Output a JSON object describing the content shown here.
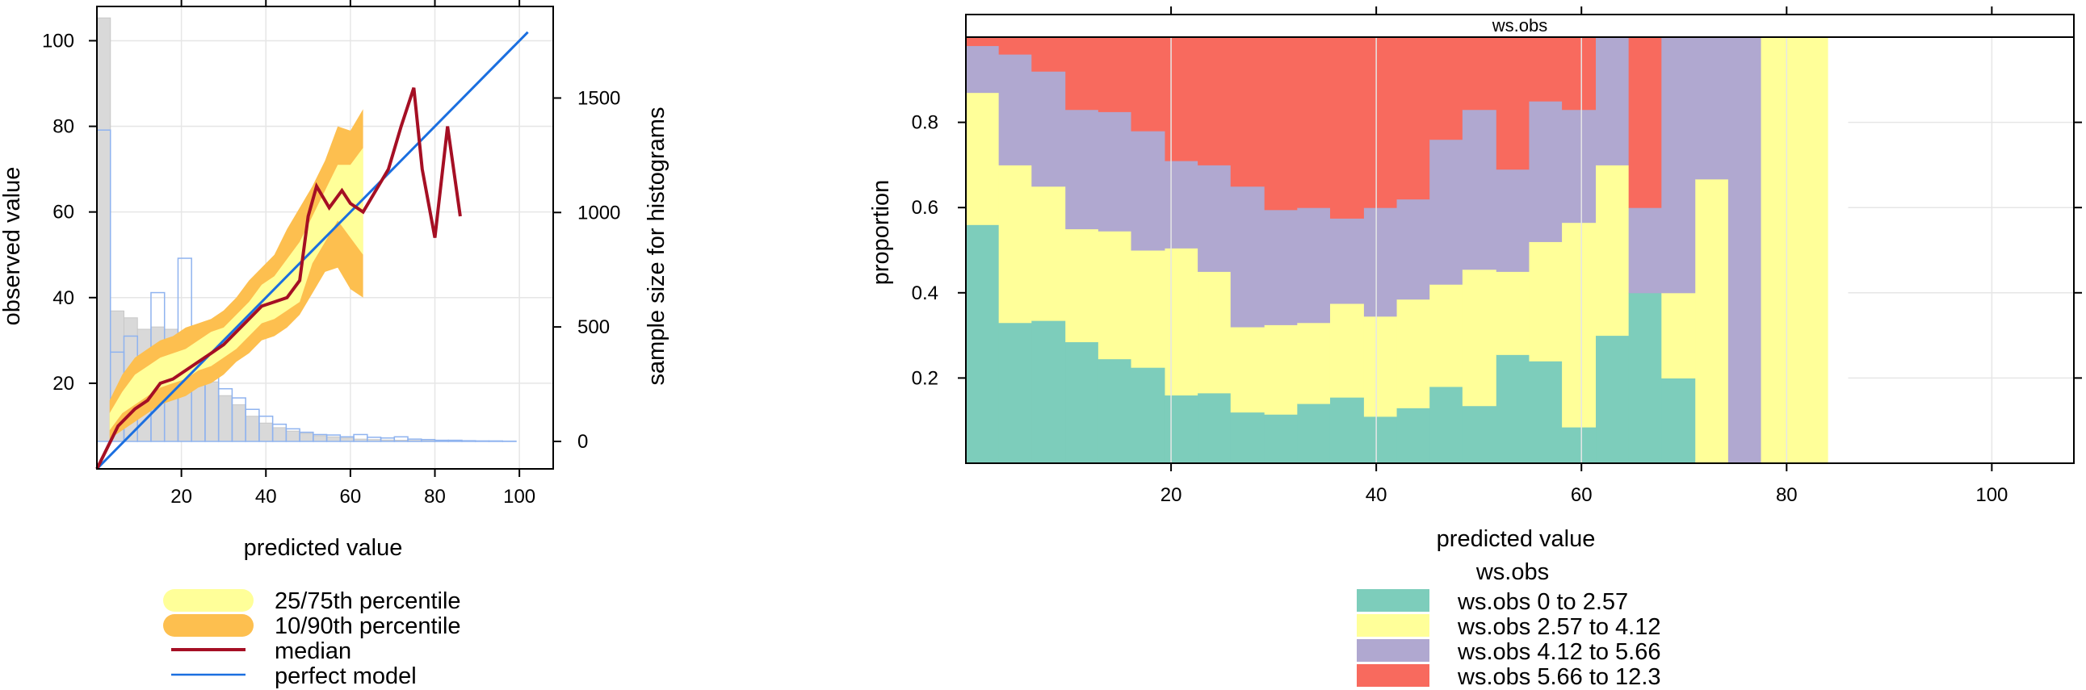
{
  "colors": {
    "p25_75": "#ffff99",
    "p10_90": "#fdbf4f",
    "median": "#a50f24",
    "perfect": "#1b6fe0",
    "hist_obs": "#d9d9d9",
    "hist_pred": "#8fb3ef",
    "ws_bins": [
      "#7dcdbb",
      "#ffff99",
      "#b0a8d0",
      "#f86a5e"
    ]
  },
  "chart_data": [
    {
      "type": "line",
      "xlabel": "predicted value",
      "ylabel": "observed value",
      "y2label": "sample size for histograms",
      "xlim": [
        0,
        108
      ],
      "ylim": [
        0,
        108
      ],
      "y2lim": [
        -120,
        1900
      ],
      "xticks": [
        20,
        40,
        60,
        80,
        100
      ],
      "yticks": [
        20,
        40,
        60,
        80,
        100
      ],
      "y2ticks": [
        0,
        500,
        1000,
        1500
      ],
      "grid": true,
      "legend_position": "bottom",
      "legend": [
        {
          "label": "25/75th percentile",
          "key": "p25_75",
          "style": "band"
        },
        {
          "label": "10/90th percentile",
          "key": "p10_90",
          "style": "band"
        },
        {
          "label": "median",
          "key": "median",
          "style": "line"
        },
        {
          "label": "perfect model",
          "key": "perfect",
          "style": "thinline"
        }
      ],
      "series": [
        {
          "name": "median",
          "x": [
            0,
            5,
            9,
            12,
            15,
            18,
            21,
            24,
            27,
            30,
            33,
            36,
            39,
            42,
            45,
            48,
            50,
            52,
            55,
            58,
            60,
            63,
            66,
            69,
            72,
            75,
            77,
            80,
            83,
            86
          ],
          "y": [
            0,
            10,
            14,
            16,
            20,
            21,
            23,
            25,
            27,
            29,
            32,
            35,
            38,
            39,
            40,
            44,
            59,
            66,
            61,
            65,
            62,
            60,
            65,
            70,
            80,
            89,
            70,
            54,
            80,
            59
          ]
        }
      ],
      "band_10_90": {
        "x": [
          3,
          6,
          9,
          12,
          15,
          18,
          21,
          24,
          27,
          30,
          33,
          36,
          39,
          42,
          45,
          48,
          51,
          54,
          57,
          60,
          63
        ],
        "low": [
          7,
          9,
          11,
          13,
          15,
          16,
          17,
          19,
          20,
          22,
          25,
          27,
          30,
          31,
          33,
          36,
          41,
          46,
          47,
          42,
          40
        ],
        "high": [
          16,
          22,
          26,
          28,
          30,
          31,
          33,
          34,
          35,
          37,
          40,
          44,
          47,
          50,
          56,
          61,
          66,
          72,
          80,
          79,
          84
        ]
      },
      "band_25_75": {
        "x": [
          3,
          6,
          9,
          12,
          15,
          18,
          21,
          24,
          27,
          30,
          33,
          36,
          39,
          42,
          45,
          48,
          51,
          54,
          57,
          60,
          63
        ],
        "low": [
          9,
          13,
          15,
          17,
          19,
          20,
          21,
          23,
          24,
          26,
          28,
          31,
          34,
          35,
          37,
          39,
          48,
          53,
          58,
          54,
          50
        ],
        "high": [
          13,
          18,
          22,
          24,
          26,
          27,
          28,
          30,
          32,
          33,
          36,
          39,
          43,
          45,
          49,
          53,
          59,
          65,
          71,
          71,
          75
        ]
      },
      "hist_observed": {
        "bin_width": 3.2,
        "x_start": 0,
        "counts": [
          1850,
          570,
          540,
          490,
          500,
          490,
          420,
          380,
          260,
          200,
          160,
          110,
          80,
          60,
          45,
          35,
          25,
          20,
          15,
          10,
          8,
          6,
          5,
          4,
          3,
          3,
          2,
          2,
          2,
          1,
          1
        ]
      },
      "hist_predicted": {
        "bin_width": 3.2,
        "x_start": 0,
        "counts": [
          1360,
          390,
          460,
          320,
          650,
          390,
          800,
          360,
          330,
          230,
          190,
          140,
          110,
          75,
          55,
          40,
          30,
          28,
          20,
          30,
          18,
          15,
          20,
          10,
          8,
          5,
          5,
          3,
          2,
          2,
          1
        ]
      },
      "perfect_model": {
        "x": [
          0,
          102
        ],
        "y": [
          0,
          102
        ]
      }
    },
    {
      "type": "bar",
      "stacked": true,
      "strip_title": "ws.obs",
      "xlabel": "predicted value",
      "ylabel": "proportion",
      "xlim": [
        0,
        108
      ],
      "ylim": [
        0,
        1
      ],
      "xticks": [
        20,
        40,
        60,
        80,
        100
      ],
      "yticks": [
        0.2,
        0.4,
        0.6,
        0.8
      ],
      "grid": true,
      "legend_title": "ws.obs",
      "legend_position": "bottom",
      "series_names": [
        "ws.obs 0 to 2.57",
        "ws.obs 2.57 to 4.12",
        "ws.obs 4.12 to 5.66",
        "ws.obs 5.66 to 12.3"
      ],
      "bins": [
        {
          "x0": 0.0,
          "x1": 3.2,
          "p": [
            0.56,
            0.31,
            0.11,
            0.02
          ]
        },
        {
          "x0": 3.2,
          "x1": 6.4,
          "p": [
            0.33,
            0.37,
            0.26,
            0.04
          ]
        },
        {
          "x0": 6.4,
          "x1": 9.7,
          "p": [
            0.335,
            0.315,
            0.27,
            0.08
          ]
        },
        {
          "x0": 9.7,
          "x1": 12.9,
          "p": [
            0.285,
            0.265,
            0.28,
            0.17
          ]
        },
        {
          "x0": 12.9,
          "x1": 16.1,
          "p": [
            0.245,
            0.3,
            0.28,
            0.175
          ]
        },
        {
          "x0": 16.1,
          "x1": 19.4,
          "p": [
            0.225,
            0.275,
            0.28,
            0.22
          ]
        },
        {
          "x0": 19.4,
          "x1": 22.6,
          "p": [
            0.16,
            0.345,
            0.205,
            0.29
          ]
        },
        {
          "x0": 22.6,
          "x1": 25.8,
          "p": [
            0.165,
            0.285,
            0.25,
            0.3
          ]
        },
        {
          "x0": 25.8,
          "x1": 29.1,
          "p": [
            0.12,
            0.2,
            0.33,
            0.35
          ]
        },
        {
          "x0": 29.1,
          "x1": 32.3,
          "p": [
            0.115,
            0.21,
            0.27,
            0.405
          ]
        },
        {
          "x0": 32.3,
          "x1": 35.5,
          "p": [
            0.14,
            0.19,
            0.27,
            0.4
          ]
        },
        {
          "x0": 35.5,
          "x1": 38.8,
          "p": [
            0.155,
            0.22,
            0.2,
            0.425
          ]
        },
        {
          "x0": 38.8,
          "x1": 42.0,
          "p": [
            0.11,
            0.235,
            0.255,
            0.4
          ]
        },
        {
          "x0": 42.0,
          "x1": 45.2,
          "p": [
            0.13,
            0.255,
            0.235,
            0.38
          ]
        },
        {
          "x0": 45.2,
          "x1": 48.4,
          "p": [
            0.18,
            0.24,
            0.34,
            0.24
          ]
        },
        {
          "x0": 48.4,
          "x1": 51.7,
          "p": [
            0.135,
            0.32,
            0.375,
            0.17
          ]
        },
        {
          "x0": 51.7,
          "x1": 54.9,
          "p": [
            0.255,
            0.195,
            0.24,
            0.31
          ]
        },
        {
          "x0": 54.9,
          "x1": 58.1,
          "p": [
            0.24,
            0.28,
            0.33,
            0.15
          ]
        },
        {
          "x0": 58.1,
          "x1": 61.4,
          "p": [
            0.085,
            0.48,
            0.265,
            0.17
          ]
        },
        {
          "x0": 61.4,
          "x1": 64.6,
          "p": [
            0.3,
            0.4,
            0.3,
            0.0
          ]
        },
        {
          "x0": 64.6,
          "x1": 67.8,
          "p": [
            0.4,
            0.0,
            0.2,
            0.4
          ]
        },
        {
          "x0": 67.8,
          "x1": 71.1,
          "p": [
            0.2,
            0.2,
            0.6,
            0.0
          ]
        },
        {
          "x0": 71.1,
          "x1": 74.3,
          "p": [
            0.0,
            0.667,
            0.333,
            0.0
          ]
        },
        {
          "x0": 74.3,
          "x1": 77.5,
          "p": [
            0.0,
            0.0,
            1.0,
            0.0
          ]
        },
        {
          "x0": 77.5,
          "x1": 84.0,
          "p": [
            0.0,
            1.0,
            0.0,
            0.0
          ]
        }
      ]
    }
  ]
}
